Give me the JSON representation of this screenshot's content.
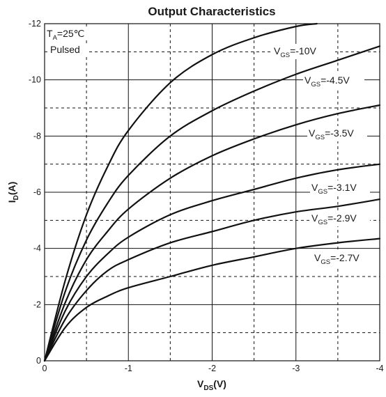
{
  "chart_data": {
    "type": "line",
    "title": "Output Characteristics",
    "xlabel": {
      "main": "V",
      "sub": "DS",
      "unit": "(V)"
    },
    "ylabel": {
      "main": "I",
      "sub": "D",
      "unit": "(A)"
    },
    "xlim": [
      0,
      -4
    ],
    "ylim": [
      0,
      -12
    ],
    "xticks": [
      0,
      -1,
      -2,
      -3,
      -4
    ],
    "xtick_labels": [
      "0",
      "-1",
      "-2",
      "-3",
      "-4"
    ],
    "yticks": [
      0,
      -2,
      -4,
      -6,
      -8,
      -10,
      -12
    ],
    "ytick_labels": [
      "0",
      "-2",
      "-4",
      "-6",
      "-8",
      "-10",
      "-12"
    ],
    "grid": true,
    "grid_x_dashed": [
      -0.5,
      -1.5,
      -2.5,
      -3.5
    ],
    "grid_y_dashed": [
      -1,
      -3,
      -5,
      -7,
      -9,
      -11
    ],
    "conditions": [
      {
        "main": "T",
        "sub": "A",
        "rest": "=25℃"
      },
      {
        "main": "Pulsed",
        "sub": "",
        "rest": ""
      }
    ],
    "series": [
      {
        "name": "VGS=-10V",
        "label": {
          "main": "V",
          "sub": "GS",
          "rest": "=-10V"
        },
        "x": [
          0,
          -0.25,
          -0.5,
          -0.75,
          -1,
          -1.5,
          -2,
          -2.5,
          -3,
          -3.25
        ],
        "y": [
          0,
          -2.9,
          -5.2,
          -6.9,
          -8.2,
          -9.9,
          -10.9,
          -11.5,
          -11.9,
          -12
        ]
      },
      {
        "name": "VGS=-4.5V",
        "label": {
          "main": "V",
          "sub": "GS",
          "rest": "=-4.5V"
        },
        "x": [
          0,
          -0.25,
          -0.5,
          -0.75,
          -1,
          -1.5,
          -2,
          -2.5,
          -3,
          -3.5,
          -4
        ],
        "y": [
          0,
          -2.5,
          -4.3,
          -5.6,
          -6.6,
          -8.0,
          -8.9,
          -9.6,
          -10.2,
          -10.7,
          -11.2
        ]
      },
      {
        "name": "VGS=-3.5V",
        "label": {
          "main": "V",
          "sub": "GS",
          "rest": "=-3.5V"
        },
        "x": [
          0,
          -0.25,
          -0.5,
          -0.75,
          -1,
          -1.5,
          -2,
          -2.5,
          -3,
          -3.5,
          -4
        ],
        "y": [
          0,
          -2.1,
          -3.6,
          -4.6,
          -5.4,
          -6.5,
          -7.3,
          -7.9,
          -8.4,
          -8.8,
          -9.1
        ]
      },
      {
        "name": "VGS=-3.1V",
        "label": {
          "main": "V",
          "sub": "GS",
          "rest": "=-3.1V"
        },
        "x": [
          0,
          -0.25,
          -0.5,
          -0.75,
          -1,
          -1.5,
          -2,
          -2.5,
          -3,
          -3.5,
          -4
        ],
        "y": [
          0,
          -1.8,
          -3.0,
          -3.8,
          -4.4,
          -5.2,
          -5.7,
          -6.1,
          -6.5,
          -6.8,
          -7.0
        ]
      },
      {
        "name": "VGS=-2.9V",
        "label": {
          "main": "V",
          "sub": "GS",
          "rest": "=-2.9V"
        },
        "x": [
          0,
          -0.25,
          -0.5,
          -0.75,
          -1,
          -1.5,
          -2,
          -2.5,
          -3,
          -3.5,
          -4
        ],
        "y": [
          0,
          -1.5,
          -2.5,
          -3.2,
          -3.6,
          -4.2,
          -4.6,
          -5.0,
          -5.3,
          -5.5,
          -5.75
        ]
      },
      {
        "name": "VGS=-2.7V",
        "label": {
          "main": "V",
          "sub": "GS",
          "rest": "=-2.7V"
        },
        "x": [
          0,
          -0.25,
          -0.5,
          -0.75,
          -1,
          -1.5,
          -2,
          -2.5,
          -3,
          -3.5,
          -4
        ],
        "y": [
          0,
          -1.2,
          -1.9,
          -2.3,
          -2.6,
          -3.0,
          -3.4,
          -3.7,
          -4.0,
          -4.2,
          -4.35
        ]
      }
    ]
  }
}
